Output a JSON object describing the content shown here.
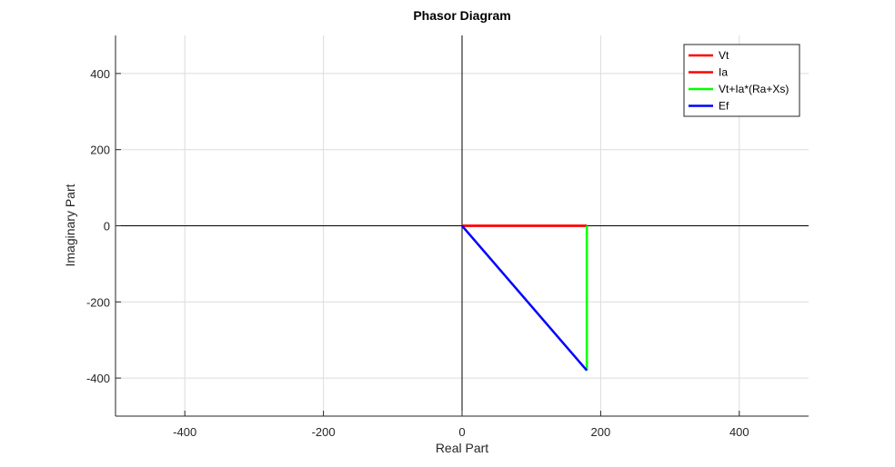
{
  "chart_data": {
    "type": "line",
    "title": "Phasor Diagram",
    "xlabel": "Real Part",
    "ylabel": "Imaginary Part",
    "xlim": [
      -500,
      500
    ],
    "ylim": [
      -500,
      500
    ],
    "xticks": [
      -400,
      -200,
      0,
      200,
      400
    ],
    "yticks": [
      -400,
      -200,
      0,
      200,
      400
    ],
    "grid": true,
    "legend_position": "top-right",
    "series": [
      {
        "name": "Vt",
        "color": "#ff0000",
        "points": [
          [
            0,
            0
          ],
          [
            180,
            0
          ]
        ]
      },
      {
        "name": "Ia",
        "color": "#ff0000",
        "points": [
          [
            0,
            0
          ],
          [
            180,
            0
          ]
        ]
      },
      {
        "name": " Vt+Ia*(Ra+Xs)",
        "color": "#00ff00",
        "points": [
          [
            180,
            0
          ],
          [
            180,
            -380
          ]
        ]
      },
      {
        "name": "Ef",
        "color": "#0000ff",
        "points": [
          [
            0,
            0
          ],
          [
            180,
            -380
          ]
        ]
      }
    ]
  }
}
